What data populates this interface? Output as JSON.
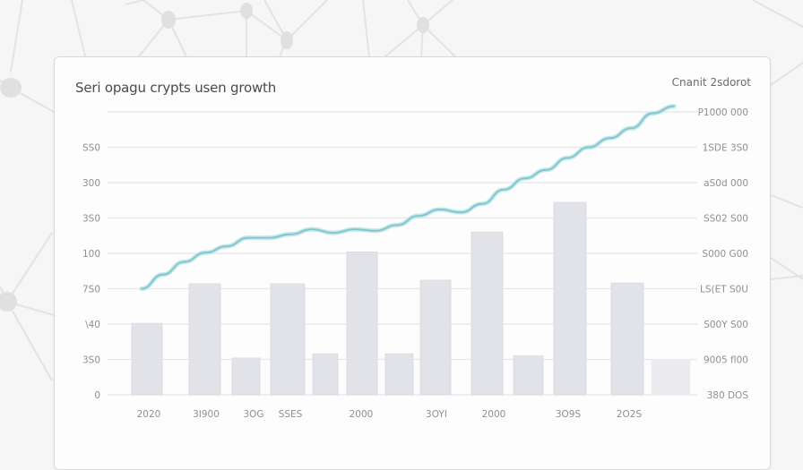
{
  "page": {
    "title": "Seri ­opagu crypts usen growth",
    "subtitle": "Cnanit 2sdorot"
  },
  "colors": {
    "background": "#f6f6f7",
    "card": "#fdfdfd",
    "bar": "#e2e3e9",
    "bar_last": "#ececf0",
    "line": "#7cc6cc",
    "grid": "#e6e6e8",
    "text": "#8f8f94"
  },
  "chart_data": {
    "type": "bar",
    "title": "Seri ­opagu crypts usen growth",
    "subtitle": "Cnanit 2sdorot",
    "xlabel": "",
    "ylabel": "",
    "grid": true,
    "legend": "none",
    "left_axis": {
      "ticks": [
        "0",
        "3S0",
        "\\40",
        "7S0",
        "100",
        "3S0",
        "300",
        "SS0"
      ],
      "ylim": [
        0,
        400
      ]
    },
    "right_axis": {
      "ticks": [
        "380 DOS",
        "9005 fl00",
        "S00Y S00",
        "LS(ET S0U",
        "S000 G00",
        "SS02 S00",
        "aS0d 000",
        "1SDE 3S0",
        "P1000 000"
      ]
    },
    "x_tick_labels": [
      "2020",
      "3I900",
      "3OG",
      "SSES",
      "2000",
      "3OYI",
      "2000",
      "3O9S",
      "2O2S"
    ],
    "categories": [
      "1",
      "2",
      "3",
      "4",
      "5",
      "6",
      "7",
      "8",
      "9",
      "10",
      "11",
      "12",
      "13"
    ],
    "series": [
      {
        "name": "bars",
        "type": "bar",
        "values": [
          101,
          157,
          52,
          157,
          58,
          202,
          58,
          162,
          230,
          55,
          272,
          158,
          50
        ]
      },
      {
        "name": "growth line",
        "type": "line",
        "x": [
          0,
          0.5,
          1,
          1.5,
          2,
          2.5,
          3,
          3.5,
          4,
          4.5,
          5,
          5.5,
          6,
          6.5,
          7,
          7.5,
          8,
          8.5,
          9,
          9.5,
          10,
          10.5,
          11,
          11.5,
          12,
          12.5
        ],
        "values": [
          150,
          170,
          188,
          201,
          210,
          222,
          222,
          227,
          234,
          229,
          234,
          232,
          240,
          253,
          262,
          258,
          270,
          290,
          306,
          318,
          335,
          350,
          363,
          377,
          398,
          408
        ]
      }
    ]
  }
}
